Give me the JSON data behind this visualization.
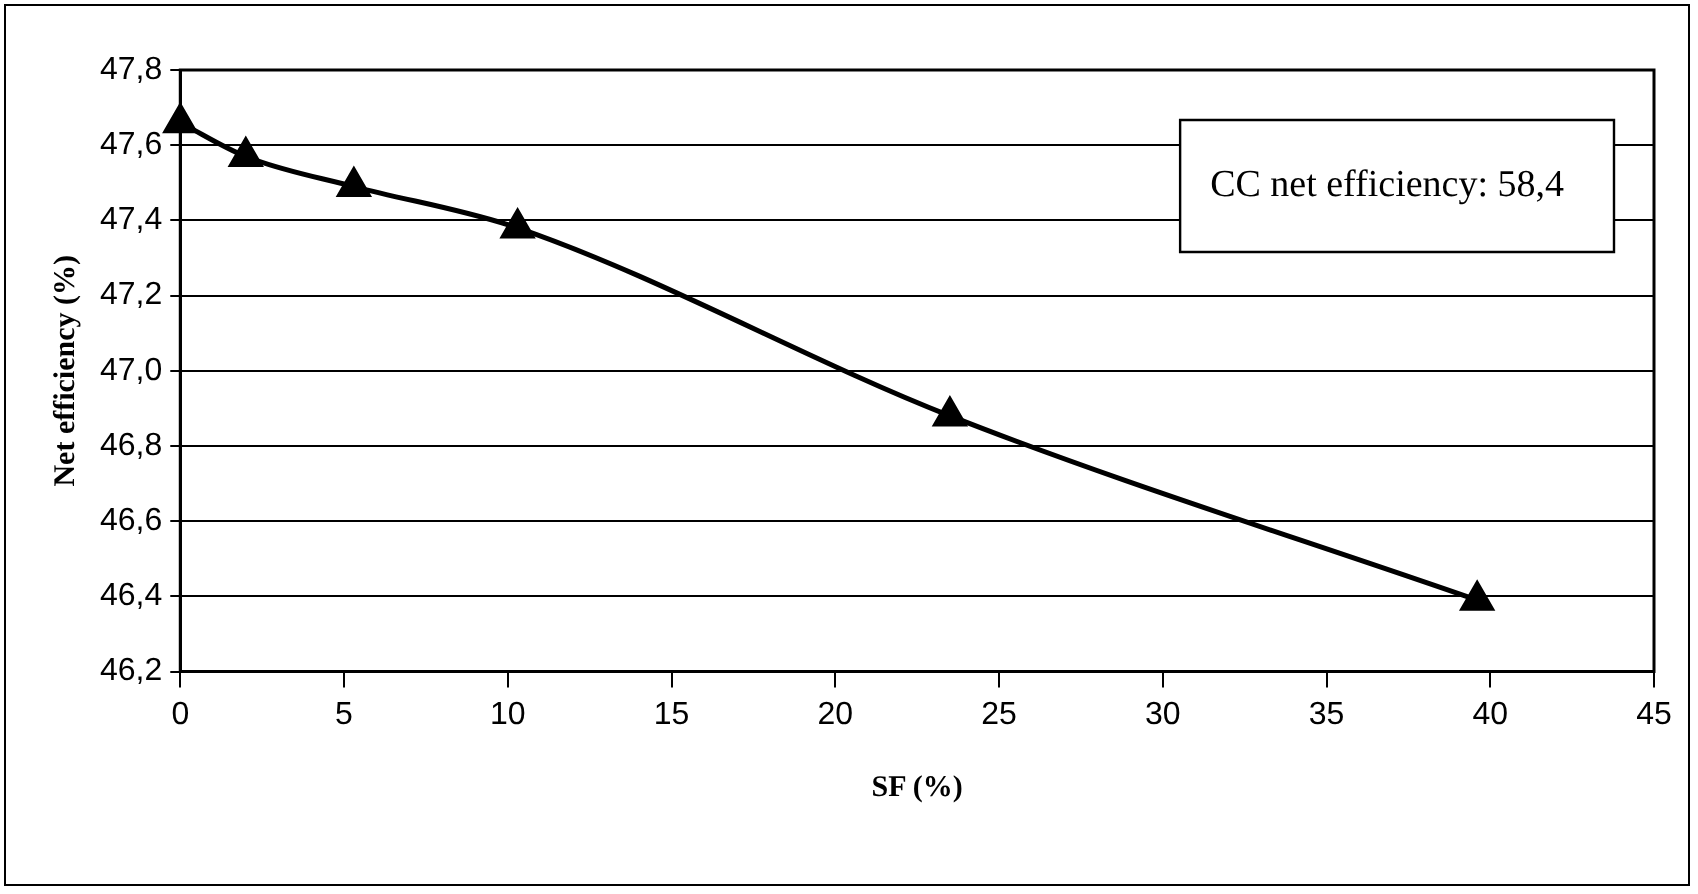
{
  "chart_data": {
    "type": "line",
    "xlabel": "SF (%)",
    "ylabel": "Net efficiency (%)",
    "x": [
      0,
      2,
      5.3,
      10.3,
      23.5,
      39.6
    ],
    "series": [
      {
        "color": "#000000",
        "values": [
          47.66,
          47.57,
          47.49,
          47.38,
          46.88,
          46.39
        ]
      }
    ],
    "xlim": [
      0,
      45
    ],
    "xticks": [
      0,
      5,
      10,
      15,
      20,
      25,
      30,
      35,
      40,
      45
    ],
    "ylim": [
      46.2,
      47.8
    ],
    "yticks": [
      {
        "value": 46.2,
        "label": "46,2"
      },
      {
        "value": 46.4,
        "label": "46,4"
      },
      {
        "value": 46.6,
        "label": "46,6"
      },
      {
        "value": 46.8,
        "label": "46,8"
      },
      {
        "value": 47,
        "label": "47,0"
      },
      {
        "value": 47.2,
        "label": "47,2"
      },
      {
        "value": 47.4,
        "label": "47,4"
      },
      {
        "value": 47.6,
        "label": "47,6"
      },
      {
        "value": 47.8,
        "label": "47,8"
      }
    ],
    "grid": "y",
    "legend": false,
    "marker": "triangle",
    "line_style": "solid",
    "annotations": [
      "CC net efficiency: 58,4"
    ]
  }
}
